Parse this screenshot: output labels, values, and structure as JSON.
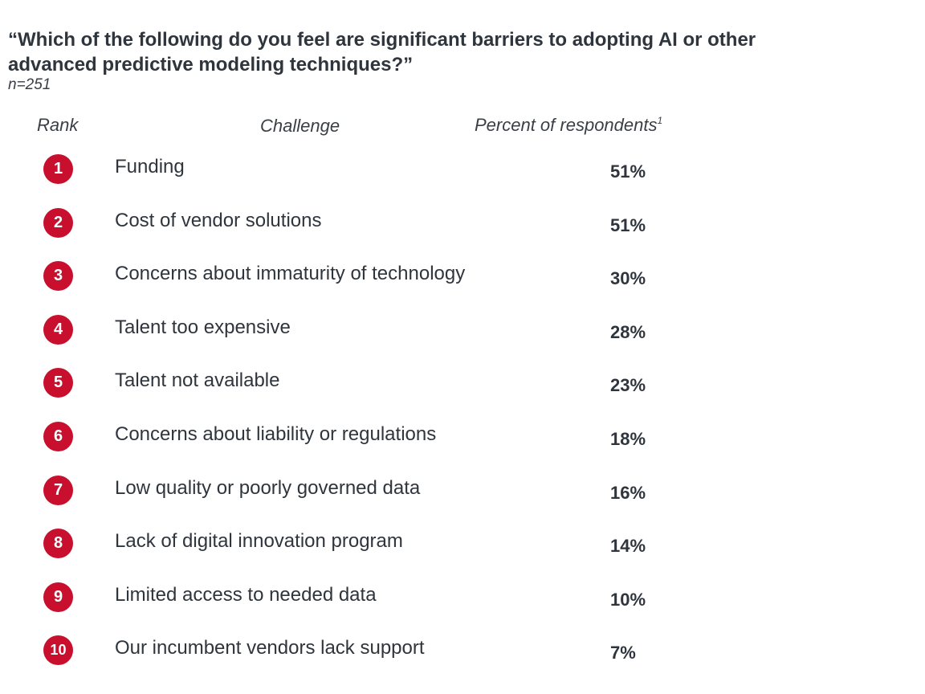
{
  "title": "“Which of the following do you feel are significant barriers to adopting AI or other advanced predictive modeling techniques?”",
  "sample": "n=251",
  "headers": {
    "rank": "Rank",
    "challenge": "Challenge",
    "percent": "Percent of respondents",
    "percent_footnote": "1"
  },
  "colors": {
    "badge": "#c8102e",
    "text": "#2f353d"
  },
  "chart_data": {
    "type": "table",
    "columns": [
      "Rank",
      "Challenge",
      "Percent of respondents"
    ],
    "rows": [
      {
        "rank": "1",
        "challenge": "Funding",
        "percent": "51%",
        "value": 51
      },
      {
        "rank": "2",
        "challenge": "Cost of vendor solutions",
        "percent": "51%",
        "value": 51
      },
      {
        "rank": "3",
        "challenge": "Concerns about immaturity of technology",
        "percent": "30%",
        "value": 30
      },
      {
        "rank": "4",
        "challenge": "Talent too expensive",
        "percent": "28%",
        "value": 28
      },
      {
        "rank": "5",
        "challenge": "Talent not available",
        "percent": "23%",
        "value": 23
      },
      {
        "rank": "6",
        "challenge": "Concerns about liability or regulations",
        "percent": "18%",
        "value": 18
      },
      {
        "rank": "7",
        "challenge": "Low quality or poorly governed data",
        "percent": "16%",
        "value": 16
      },
      {
        "rank": "8",
        "challenge": "Lack of digital innovation program",
        "percent": "14%",
        "value": 14
      },
      {
        "rank": "9",
        "challenge": "Limited access to needed data",
        "percent": "10%",
        "value": 10
      },
      {
        "rank": "10",
        "challenge": "Our incumbent vendors lack support",
        "percent": "7%",
        "value": 7
      }
    ]
  }
}
